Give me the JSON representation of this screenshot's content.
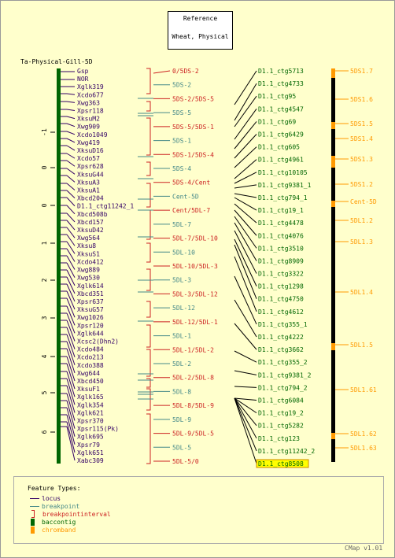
{
  "reference": {
    "line1": "Reference",
    "line2": "Wheat, Physical"
  },
  "map_title": "Ta-Physical-Gill-5D",
  "axis_ticks": [
    "-1",
    "0",
    "0",
    "1",
    "2",
    "3",
    "4",
    "5",
    "6"
  ],
  "loci": [
    "Gsp",
    "NOR",
    "Xglk319",
    "Xcdo677",
    "Xwg363",
    "Xpsr118",
    "XksuM2",
    "Xwg909",
    "Xcdo1049",
    "Xwg419",
    "XksuD16",
    "Xcdo57",
    "Xpsr628",
    "XksuG44",
    "XksuA3",
    "XksuA1",
    "Xbcd204",
    "D1.1_ctg11242_1",
    "Xbcd508b",
    "Xbcd157",
    "XksuD42",
    "Xwg564",
    "Xksu8",
    "XksuS1",
    "Xcdo412",
    "Xwg889",
    "Xwg530",
    "Xglk614",
    "Xbcd351",
    "Xpsr637",
    "XksuG57",
    "Xwg1026",
    "Xpsr120",
    "Xglk644",
    "Xcsc2(Dhn2)",
    "Xcdo484",
    "Xcdo213",
    "Xcdo388",
    "Xwg644",
    "Xbcd450",
    "XksuF1",
    "Xglk165",
    "Xglk354",
    "Xglk621",
    "Xpsr370",
    "Xpsr115(Pk)",
    "Xglk695",
    "Xpsr79",
    "Xglk651",
    "Xabc309"
  ],
  "breakpoints": [
    {
      "label": "0/5DS-2",
      "type": "interval"
    },
    {
      "label": "5DS-2",
      "type": "point"
    },
    {
      "label": "5DS-2/5DS-5",
      "type": "interval"
    },
    {
      "label": "5DS-5",
      "type": "point"
    },
    {
      "label": "5DS-5/5DS-1",
      "type": "interval"
    },
    {
      "label": "5DS-1",
      "type": "point"
    },
    {
      "label": "5DS-1/5DS-4",
      "type": "interval"
    },
    {
      "label": "5DS-4",
      "type": "point"
    },
    {
      "label": "5DS-4/Cent",
      "type": "interval"
    },
    {
      "label": "Cent-5D",
      "type": "point"
    },
    {
      "label": "Cent/5DL-7",
      "type": "interval"
    },
    {
      "label": "5DL-7",
      "type": "point"
    },
    {
      "label": "5DL-7/5DL-10",
      "type": "interval"
    },
    {
      "label": "5DL-10",
      "type": "point"
    },
    {
      "label": "5DL-10/5DL-3",
      "type": "interval"
    },
    {
      "label": "5DL-3",
      "type": "point"
    },
    {
      "label": "5DL-3/5DL-12",
      "type": "interval"
    },
    {
      "label": "5DL-12",
      "type": "point"
    },
    {
      "label": "5DL-12/5DL-1",
      "type": "interval"
    },
    {
      "label": "5DL-1",
      "type": "point"
    },
    {
      "label": "5DL-1/5DL-2",
      "type": "interval"
    },
    {
      "label": "5DL-2",
      "type": "point"
    },
    {
      "label": "5DL-2/5DL-8",
      "type": "interval"
    },
    {
      "label": "5DL-8",
      "type": "point"
    },
    {
      "label": "5DL-8/5DL-9",
      "type": "interval"
    },
    {
      "label": "5DL-9",
      "type": "point"
    },
    {
      "label": "5DL-9/5DL-5",
      "type": "interval"
    },
    {
      "label": "5DL-5",
      "type": "point"
    },
    {
      "label": "5DL-5/0",
      "type": "interval"
    }
  ],
  "contigs": [
    "D1.1_ctg5713",
    "D1.1_ctg4733",
    "D1.1_ctg95",
    "D1.1_ctg4547",
    "D1.1_ctg69",
    "D1.1_ctg6429",
    "D1.1_ctg605",
    "D1.1_ctg4961",
    "D1.1_ctg10105",
    "D1.1_ctg9381_1",
    "D1.1_ctg794_1",
    "D1.1_ctg19_1",
    "D1.1_ctg4478",
    "D1.1_ctg4076",
    "D1.1_ctg3510",
    "D1.1_ctg8909",
    "D1.1_ctg3322",
    "D1.1_ctg1298",
    "D1.1_ctg4750",
    "D1.1_ctg4612",
    "D1.1_ctg355_1",
    "D1.1_ctg4222",
    "D1.1_ctg3662",
    "D1.1_ctg355_2",
    "D1.1_ctg9381_2",
    "D1.1_ctg794_2",
    "D1.1_ctg6084",
    "D1.1_ctg19_2",
    "D1.1_ctg5282",
    "D1.1_ctg123",
    "D1.1_ctg11242_2",
    "D1.1_ctg8508"
  ],
  "highlighted_contig": "D1.1_ctg8508",
  "chrombands": [
    "5DS1.7",
    "5DS1.6",
    "5DS1.5",
    "5DS1.4",
    "5DS1.3",
    "5DS1.2",
    "Cent-5D",
    "5DL1.2",
    "5DL1.3",
    "5DL1.4",
    "5DL1.5",
    "5DL1.61",
    "5DL1.62",
    "5DL1.63"
  ],
  "legend": {
    "title": "Feature Types:",
    "items": [
      {
        "label": "locus",
        "kind": "locus"
      },
      {
        "label": "breakpoint",
        "kind": "breakpoint"
      },
      {
        "label": "breakpointinterval",
        "kind": "interval"
      },
      {
        "label": "baccontig",
        "kind": "contig"
      },
      {
        "label": "chromband",
        "kind": "band"
      }
    ]
  },
  "footer": "CMap v1.01",
  "colors": {
    "background": "#ffffcc",
    "locus": "#330066",
    "breakpoint": "#448888",
    "interval": "#cc2222",
    "contig": "#006600",
    "band": "#ff9900",
    "map_bar": "#006600"
  }
}
